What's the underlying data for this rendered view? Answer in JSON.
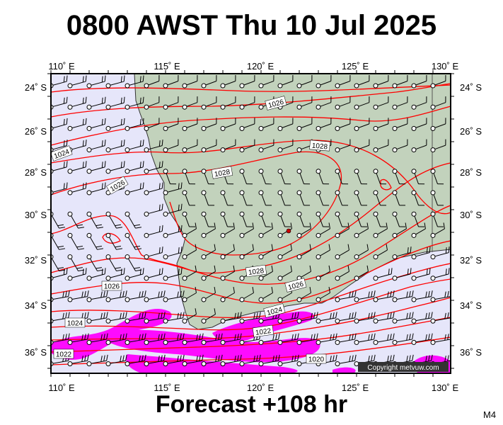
{
  "title": "0800 AWST Thu 10 Jul 2025",
  "footer": "Forecast +108 hr",
  "model": "M4",
  "copyright": "Copyright metvuw.com",
  "lon_labels": [
    "110˚ E",
    "115˚ E",
    "120˚ E",
    "125˚ E",
    "130˚ E"
  ],
  "lat_labels": [
    "24˚ S",
    "26˚ S",
    "28˚ S",
    "30˚ S",
    "32˚ S",
    "34˚ S",
    "36˚ S"
  ],
  "isobar_labels": [
    "1026",
    "1028",
    "1024",
    "1026",
    "1028",
    "1028",
    "1026",
    "1026",
    "1024",
    "1024",
    "1022",
    "1022",
    "1020"
  ],
  "colors": {
    "ocean": "#e6e6fa",
    "land": "#c2d2bc",
    "isobar": "#ff0000",
    "precip": "#ff00ff",
    "wind": "#000000"
  }
}
